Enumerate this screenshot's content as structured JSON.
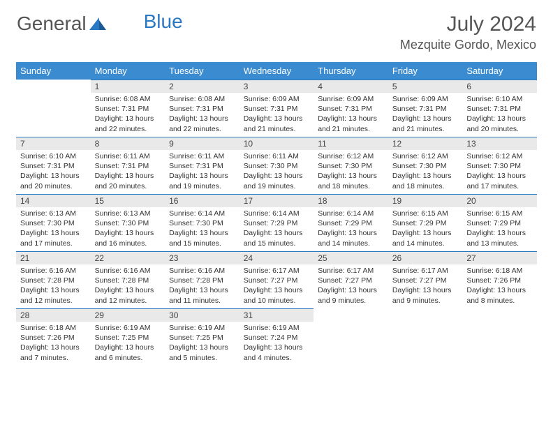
{
  "brand": {
    "part1": "General",
    "part2": "Blue"
  },
  "title": "July 2024",
  "location": "Mezquite Gordo, Mexico",
  "colors": {
    "header_bg": "#3b8bd0",
    "header_text": "#ffffff",
    "daynum_bg": "#e9e9e9",
    "border_top": "#2b78c2",
    "text": "#333333",
    "title_text": "#555555"
  },
  "day_headers": [
    "Sunday",
    "Monday",
    "Tuesday",
    "Wednesday",
    "Thursday",
    "Friday",
    "Saturday"
  ],
  "weeks": [
    [
      {
        "empty": true
      },
      {
        "n": "1",
        "sr": "Sunrise: 6:08 AM",
        "ss": "Sunset: 7:31 PM",
        "dl1": "Daylight: 13 hours",
        "dl2": "and 22 minutes."
      },
      {
        "n": "2",
        "sr": "Sunrise: 6:08 AM",
        "ss": "Sunset: 7:31 PM",
        "dl1": "Daylight: 13 hours",
        "dl2": "and 22 minutes."
      },
      {
        "n": "3",
        "sr": "Sunrise: 6:09 AM",
        "ss": "Sunset: 7:31 PM",
        "dl1": "Daylight: 13 hours",
        "dl2": "and 21 minutes."
      },
      {
        "n": "4",
        "sr": "Sunrise: 6:09 AM",
        "ss": "Sunset: 7:31 PM",
        "dl1": "Daylight: 13 hours",
        "dl2": "and 21 minutes."
      },
      {
        "n": "5",
        "sr": "Sunrise: 6:09 AM",
        "ss": "Sunset: 7:31 PM",
        "dl1": "Daylight: 13 hours",
        "dl2": "and 21 minutes."
      },
      {
        "n": "6",
        "sr": "Sunrise: 6:10 AM",
        "ss": "Sunset: 7:31 PM",
        "dl1": "Daylight: 13 hours",
        "dl2": "and 20 minutes."
      }
    ],
    [
      {
        "n": "7",
        "sr": "Sunrise: 6:10 AM",
        "ss": "Sunset: 7:31 PM",
        "dl1": "Daylight: 13 hours",
        "dl2": "and 20 minutes."
      },
      {
        "n": "8",
        "sr": "Sunrise: 6:11 AM",
        "ss": "Sunset: 7:31 PM",
        "dl1": "Daylight: 13 hours",
        "dl2": "and 20 minutes."
      },
      {
        "n": "9",
        "sr": "Sunrise: 6:11 AM",
        "ss": "Sunset: 7:31 PM",
        "dl1": "Daylight: 13 hours",
        "dl2": "and 19 minutes."
      },
      {
        "n": "10",
        "sr": "Sunrise: 6:11 AM",
        "ss": "Sunset: 7:30 PM",
        "dl1": "Daylight: 13 hours",
        "dl2": "and 19 minutes."
      },
      {
        "n": "11",
        "sr": "Sunrise: 6:12 AM",
        "ss": "Sunset: 7:30 PM",
        "dl1": "Daylight: 13 hours",
        "dl2": "and 18 minutes."
      },
      {
        "n": "12",
        "sr": "Sunrise: 6:12 AM",
        "ss": "Sunset: 7:30 PM",
        "dl1": "Daylight: 13 hours",
        "dl2": "and 18 minutes."
      },
      {
        "n": "13",
        "sr": "Sunrise: 6:12 AM",
        "ss": "Sunset: 7:30 PM",
        "dl1": "Daylight: 13 hours",
        "dl2": "and 17 minutes."
      }
    ],
    [
      {
        "n": "14",
        "sr": "Sunrise: 6:13 AM",
        "ss": "Sunset: 7:30 PM",
        "dl1": "Daylight: 13 hours",
        "dl2": "and 17 minutes."
      },
      {
        "n": "15",
        "sr": "Sunrise: 6:13 AM",
        "ss": "Sunset: 7:30 PM",
        "dl1": "Daylight: 13 hours",
        "dl2": "and 16 minutes."
      },
      {
        "n": "16",
        "sr": "Sunrise: 6:14 AM",
        "ss": "Sunset: 7:30 PM",
        "dl1": "Daylight: 13 hours",
        "dl2": "and 15 minutes."
      },
      {
        "n": "17",
        "sr": "Sunrise: 6:14 AM",
        "ss": "Sunset: 7:29 PM",
        "dl1": "Daylight: 13 hours",
        "dl2": "and 15 minutes."
      },
      {
        "n": "18",
        "sr": "Sunrise: 6:14 AM",
        "ss": "Sunset: 7:29 PM",
        "dl1": "Daylight: 13 hours",
        "dl2": "and 14 minutes."
      },
      {
        "n": "19",
        "sr": "Sunrise: 6:15 AM",
        "ss": "Sunset: 7:29 PM",
        "dl1": "Daylight: 13 hours",
        "dl2": "and 14 minutes."
      },
      {
        "n": "20",
        "sr": "Sunrise: 6:15 AM",
        "ss": "Sunset: 7:29 PM",
        "dl1": "Daylight: 13 hours",
        "dl2": "and 13 minutes."
      }
    ],
    [
      {
        "n": "21",
        "sr": "Sunrise: 6:16 AM",
        "ss": "Sunset: 7:28 PM",
        "dl1": "Daylight: 13 hours",
        "dl2": "and 12 minutes."
      },
      {
        "n": "22",
        "sr": "Sunrise: 6:16 AM",
        "ss": "Sunset: 7:28 PM",
        "dl1": "Daylight: 13 hours",
        "dl2": "and 12 minutes."
      },
      {
        "n": "23",
        "sr": "Sunrise: 6:16 AM",
        "ss": "Sunset: 7:28 PM",
        "dl1": "Daylight: 13 hours",
        "dl2": "and 11 minutes."
      },
      {
        "n": "24",
        "sr": "Sunrise: 6:17 AM",
        "ss": "Sunset: 7:27 PM",
        "dl1": "Daylight: 13 hours",
        "dl2": "and 10 minutes."
      },
      {
        "n": "25",
        "sr": "Sunrise: 6:17 AM",
        "ss": "Sunset: 7:27 PM",
        "dl1": "Daylight: 13 hours",
        "dl2": "and 9 minutes."
      },
      {
        "n": "26",
        "sr": "Sunrise: 6:17 AM",
        "ss": "Sunset: 7:27 PM",
        "dl1": "Daylight: 13 hours",
        "dl2": "and 9 minutes."
      },
      {
        "n": "27",
        "sr": "Sunrise: 6:18 AM",
        "ss": "Sunset: 7:26 PM",
        "dl1": "Daylight: 13 hours",
        "dl2": "and 8 minutes."
      }
    ],
    [
      {
        "n": "28",
        "sr": "Sunrise: 6:18 AM",
        "ss": "Sunset: 7:26 PM",
        "dl1": "Daylight: 13 hours",
        "dl2": "and 7 minutes."
      },
      {
        "n": "29",
        "sr": "Sunrise: 6:19 AM",
        "ss": "Sunset: 7:25 PM",
        "dl1": "Daylight: 13 hours",
        "dl2": "and 6 minutes."
      },
      {
        "n": "30",
        "sr": "Sunrise: 6:19 AM",
        "ss": "Sunset: 7:25 PM",
        "dl1": "Daylight: 13 hours",
        "dl2": "and 5 minutes."
      },
      {
        "n": "31",
        "sr": "Sunrise: 6:19 AM",
        "ss": "Sunset: 7:24 PM",
        "dl1": "Daylight: 13 hours",
        "dl2": "and 4 minutes."
      },
      {
        "empty": true
      },
      {
        "empty": true
      },
      {
        "empty": true
      }
    ]
  ]
}
